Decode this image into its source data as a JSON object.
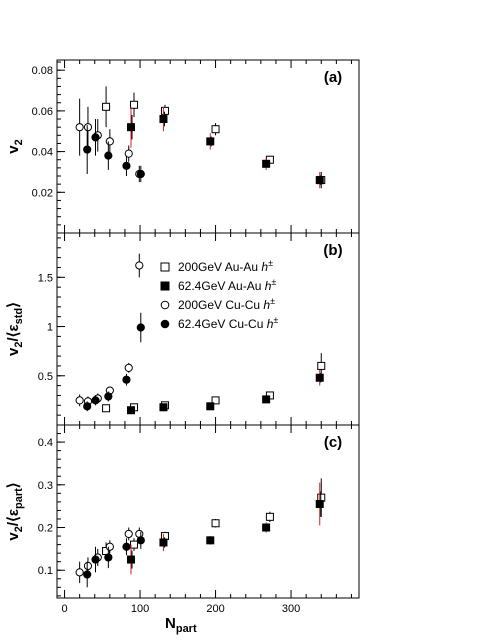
{
  "chart_data": {
    "type": "scatter",
    "xlabel": "N",
    "xlabel_sub": "part",
    "xlim": [
      -10,
      390
    ],
    "x_ticks": [
      "0",
      "100",
      "200",
      "300"
    ],
    "x_tick_values": [
      0,
      100,
      200,
      300
    ],
    "legend": {
      "placement": "top-right of panel (b)",
      "entries": [
        {
          "label": "200GeV Au-Au",
          "italic_suffix": "h",
          "superscript": "±",
          "marker": "open-square"
        },
        {
          "label": "62.4GeV Au-Au",
          "italic_suffix": "h",
          "superscript": "±",
          "marker": "filled-square"
        },
        {
          "label": "200GeV Cu-Cu",
          "italic_suffix": "h",
          "superscript": "±",
          "marker": "open-circle"
        },
        {
          "label": "62.4GeV Cu-Cu",
          "italic_suffix": "h",
          "superscript": "±",
          "marker": "filled-circle"
        }
      ]
    },
    "panels": [
      {
        "tag": "(a)",
        "ylabel_main": "v",
        "ylabel_sub": "2",
        "ylabel_denom": "",
        "ylabel_denom_sub": "",
        "ylim": [
          0,
          0.085
        ],
        "y_ticks": [
          "0.02",
          "0.04",
          "0.06",
          "0.08"
        ],
        "y_tick_values": [
          0.02,
          0.04,
          0.06,
          0.08
        ],
        "series": [
          {
            "marker": "open-square",
            "points": [
              [
                55,
                0.062,
                0.01
              ],
              [
                92,
                0.063,
                0.006
              ],
              [
                133,
                0.06,
                0.003
              ],
              [
                200,
                0.051,
                0.003
              ],
              [
                272,
                0.036,
                0.002
              ],
              [
                340,
                0.026,
                0.004
              ]
            ]
          },
          {
            "marker": "filled-square",
            "points": [
              [
                88,
                0.052,
                0.01
              ],
              [
                131,
                0.056,
                0.006
              ],
              [
                193,
                0.045,
                0.004
              ],
              [
                267,
                0.034,
                0.003
              ],
              [
                338,
                0.026,
                0.004
              ]
            ]
          },
          {
            "marker": "open-circle",
            "points": [
              [
                20,
                0.052,
                0.014
              ],
              [
                31,
                0.052,
                0.01
              ],
              [
                44,
                0.048,
                0.008
              ],
              [
                60,
                0.045,
                0.006
              ],
              [
                85,
                0.039,
                0.004
              ],
              [
                99,
                0.029,
                0.004
              ]
            ]
          },
          {
            "marker": "filled-circle",
            "points": [
              [
                30,
                0.041,
                0.012
              ],
              [
                41,
                0.047,
                0.009
              ],
              [
                58,
                0.038,
                0.007
              ],
              [
                82,
                0.033,
                0.005
              ],
              [
                101,
                0.029,
                0.004
              ]
            ]
          }
        ]
      },
      {
        "tag": "(b)",
        "ylabel_main": "v",
        "ylabel_sub": "2",
        "ylabel_denom": "ε",
        "ylabel_denom_sub": "std",
        "ylim": [
          0,
          1.95
        ],
        "y_ticks": [
          "0.5",
          "1",
          "1.5"
        ],
        "y_tick_values": [
          0.5,
          1.0,
          1.5
        ],
        "series": [
          {
            "marker": "open-square",
            "points": [
              [
                55,
                0.17,
                0.02
              ],
              [
                92,
                0.18,
                0.02
              ],
              [
                133,
                0.2,
                0.02
              ],
              [
                200,
                0.25,
                0.02
              ],
              [
                272,
                0.3,
                0.03
              ],
              [
                340,
                0.6,
                0.13
              ]
            ]
          },
          {
            "marker": "filled-square",
            "points": [
              [
                88,
                0.15,
                0.02
              ],
              [
                131,
                0.18,
                0.02
              ],
              [
                193,
                0.19,
                0.02
              ],
              [
                267,
                0.26,
                0.03
              ],
              [
                338,
                0.48,
                0.08
              ]
            ]
          },
          {
            "marker": "open-circle",
            "points": [
              [
                20,
                0.25,
                0.06
              ],
              [
                31,
                0.24,
                0.05
              ],
              [
                44,
                0.27,
                0.05
              ],
              [
                60,
                0.35,
                0.04
              ],
              [
                85,
                0.58,
                0.05
              ],
              [
                99,
                1.62,
                0.12
              ]
            ]
          },
          {
            "marker": "filled-circle",
            "points": [
              [
                30,
                0.19,
                0.05
              ],
              [
                41,
                0.25,
                0.05
              ],
              [
                58,
                0.29,
                0.05
              ],
              [
                82,
                0.46,
                0.06
              ],
              [
                101,
                0.99,
                0.15
              ]
            ]
          }
        ]
      },
      {
        "tag": "(c)",
        "ylabel_main": "v",
        "ylabel_sub": "2",
        "ylabel_denom": "ε",
        "ylabel_denom_sub": "part",
        "ylim": [
          0.035,
          0.44
        ],
        "y_ticks": [
          "0.1",
          "0.2",
          "0.3",
          "0.4"
        ],
        "y_tick_values": [
          0.1,
          0.2,
          0.3,
          0.4
        ],
        "series": [
          {
            "marker": "open-square",
            "points": [
              [
                55,
                0.145,
                0.02
              ],
              [
                92,
                0.16,
                0.015
              ],
              [
                133,
                0.18,
                0.01
              ],
              [
                200,
                0.21,
                0.01
              ],
              [
                272,
                0.225,
                0.012
              ],
              [
                340,
                0.27,
                0.045
              ]
            ]
          },
          {
            "marker": "filled-square",
            "points": [
              [
                88,
                0.125,
                0.035
              ],
              [
                131,
                0.165,
                0.02
              ],
              [
                193,
                0.17,
                0.01
              ],
              [
                267,
                0.2,
                0.012
              ],
              [
                338,
                0.255,
                0.05
              ]
            ]
          },
          {
            "marker": "open-circle",
            "points": [
              [
                20,
                0.095,
                0.025
              ],
              [
                31,
                0.11,
                0.02
              ],
              [
                44,
                0.13,
                0.02
              ],
              [
                60,
                0.155,
                0.015
              ],
              [
                85,
                0.185,
                0.015
              ],
              [
                99,
                0.185,
                0.015
              ]
            ]
          },
          {
            "marker": "filled-circle",
            "points": [
              [
                30,
                0.09,
                0.03
              ],
              [
                41,
                0.125,
                0.03
              ],
              [
                58,
                0.13,
                0.025
              ],
              [
                82,
                0.155,
                0.02
              ],
              [
                101,
                0.17,
                0.02
              ]
            ]
          }
        ]
      }
    ]
  }
}
